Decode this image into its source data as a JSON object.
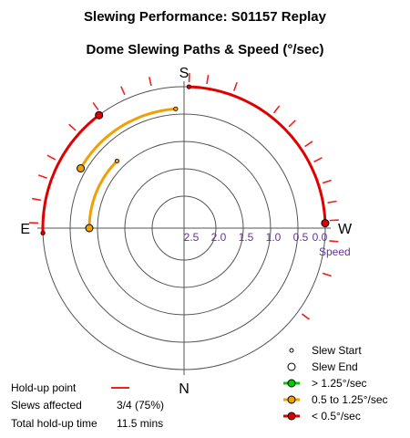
{
  "chart_data": {
    "type": "polar",
    "title": "Slewing Performance: S01157 Replay",
    "subtitle": "Dome Slewing Paths & Speed (°/sec)",
    "directions": {
      "top": "S",
      "bottom": "N",
      "left": "E",
      "right": "W"
    },
    "radial_axis": {
      "label": "Speed",
      "ticks": [
        "2.5",
        "2.0",
        "1.5",
        "1.0",
        "0.5",
        "0.0"
      ],
      "range": [
        2.5,
        0.0
      ]
    },
    "slews": [
      {
        "category": "< 0.5°/sec",
        "start": {
          "az_deg": 2,
          "speed": 0.0
        },
        "end": {
          "az_deg": 88,
          "speed": 0.0
        }
      },
      {
        "category": "< 0.5°/sec",
        "start": {
          "az_deg": 268,
          "speed": 0.0
        },
        "end": {
          "az_deg": 323,
          "speed": 0.0
        }
      },
      {
        "category": "0.5 to 1.25°/sec",
        "start": {
          "az_deg": 356,
          "speed": 0.4
        },
        "end": {
          "az_deg": 300,
          "speed": 0.4
        }
      },
      {
        "category": "0.5 to 1.25°/sec",
        "start": {
          "az_deg": 315,
          "speed": 0.85
        },
        "end": {
          "az_deg": 270,
          "speed": 0.85
        }
      }
    ],
    "holdup_points_az_deg": [
      -88,
      -79,
      -70,
      -62,
      -48,
      -36,
      -24,
      -13,
      2,
      9,
      20,
      38,
      46,
      56,
      63,
      72,
      80,
      87,
      95,
      108,
      126
    ],
    "legend": {
      "start": "Slew Start",
      "end": "Slew End",
      "fast": "> 1.25°/sec",
      "medium": "0.5 to 1.25°/sec",
      "slow": "< 0.5°/sec"
    },
    "colors": {
      "fast": "#00cc00",
      "medium": "#f0a000",
      "slow": "#e00000",
      "holdup": "#ee2222",
      "grid": "#555555",
      "ticks": "#663399"
    }
  },
  "stats": {
    "holdup_label": "Hold-up point",
    "slews_affected_label": "Slews affected",
    "slews_affected_value": "3/4 (75%)",
    "total_holdup_label": "Total hold-up time",
    "total_holdup_value": "11.5 mins"
  }
}
